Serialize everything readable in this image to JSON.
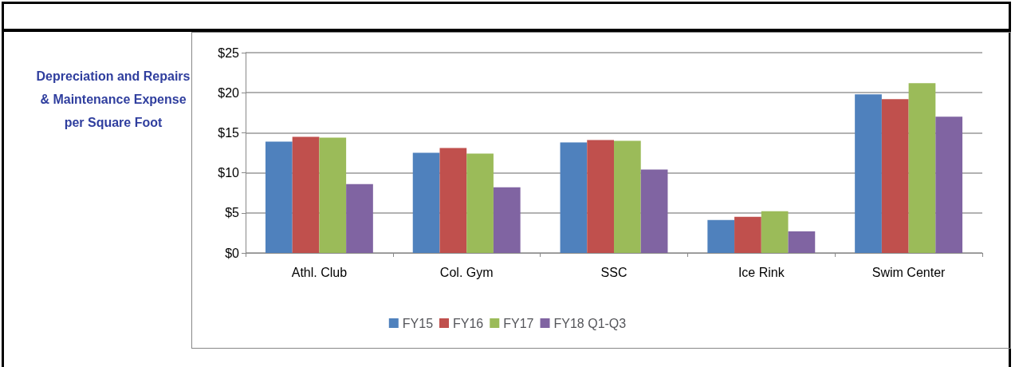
{
  "chart_data": {
    "type": "bar",
    "title": "Depreciation and Repairs & Maintenance Expense per Square Foot",
    "categories": [
      "Athl. Club",
      "Col. Gym",
      "SSC",
      "Ice Rink",
      "Swim Center"
    ],
    "series": [
      {
        "name": "FY15",
        "color": "#4f81bd",
        "values": [
          13.9,
          12.5,
          13.8,
          4.1,
          19.8
        ]
      },
      {
        "name": "FY16",
        "color": "#c0504d",
        "values": [
          14.5,
          13.1,
          14.1,
          4.5,
          19.2
        ]
      },
      {
        "name": "FY17",
        "color": "#9bbb59",
        "values": [
          14.4,
          12.4,
          14.0,
          5.2,
          21.2
        ]
      },
      {
        "name": "FY18 Q1-Q3",
        "color": "#8064a2",
        "values": [
          8.6,
          8.2,
          10.4,
          2.7,
          17.0
        ]
      }
    ],
    "ylim": [
      0,
      25
    ],
    "yticks": [
      {
        "value": 0,
        "label": "$0"
      },
      {
        "value": 5,
        "label": "$5"
      },
      {
        "value": 10,
        "label": "$10"
      },
      {
        "value": 15,
        "label": "$15"
      },
      {
        "value": 20,
        "label": "$20"
      },
      {
        "value": 25,
        "label": "$25"
      }
    ],
    "grid": "y",
    "legend": "bottom"
  }
}
